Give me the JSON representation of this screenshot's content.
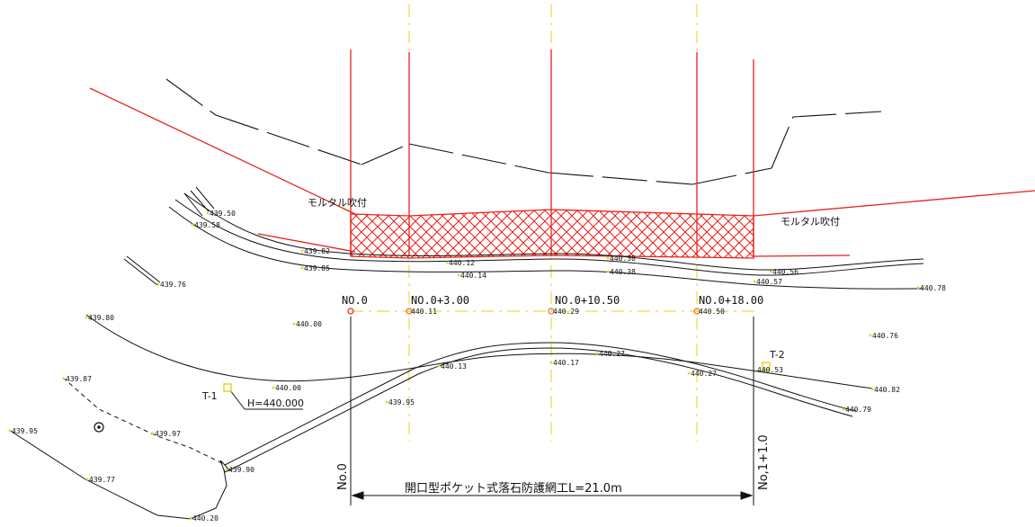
{
  "colors": {
    "red": "#e8201a",
    "yellow": "#ead21c",
    "black": "#111111",
    "station_marker": "#e07020",
    "origin_marker": "#e8201a"
  },
  "labels": {
    "mortar_left": "モルタル吹付",
    "mortar_right": "モルタル吹付",
    "station_0": "NO.0",
    "station_3": "NO.0+3.00",
    "station_10": "NO.0+10.50",
    "station_18": "NO.0+18.00",
    "t1": "T-1",
    "t2": "T-2",
    "h_value": "H=440.000",
    "no0_vertical": "No.0",
    "no1_vertical": "No,1+1.0",
    "work_dimension": "開口型ポケット式落石防護網工L=21.0m"
  },
  "elevations": [
    "439.50",
    "439.58",
    "439.82",
    "439.85",
    "440.12",
    "440.14",
    "440.38",
    "440.38",
    "440.56",
    "440.57",
    "440.78",
    "439.76",
    "440.11",
    "440.29",
    "440.50",
    "439.80",
    "440.00",
    "440.76",
    "440.27",
    "440.13",
    "440.17",
    "440.27",
    "440.53",
    "440.82",
    "440.79",
    "439.87",
    "440.00",
    "439.95",
    "439.97",
    "439.95",
    "439.90",
    "439.77",
    "440.20"
  ],
  "icons": [
    "survey-symbol-icon",
    "origin-marker-icon",
    "station-marker-icon"
  ]
}
